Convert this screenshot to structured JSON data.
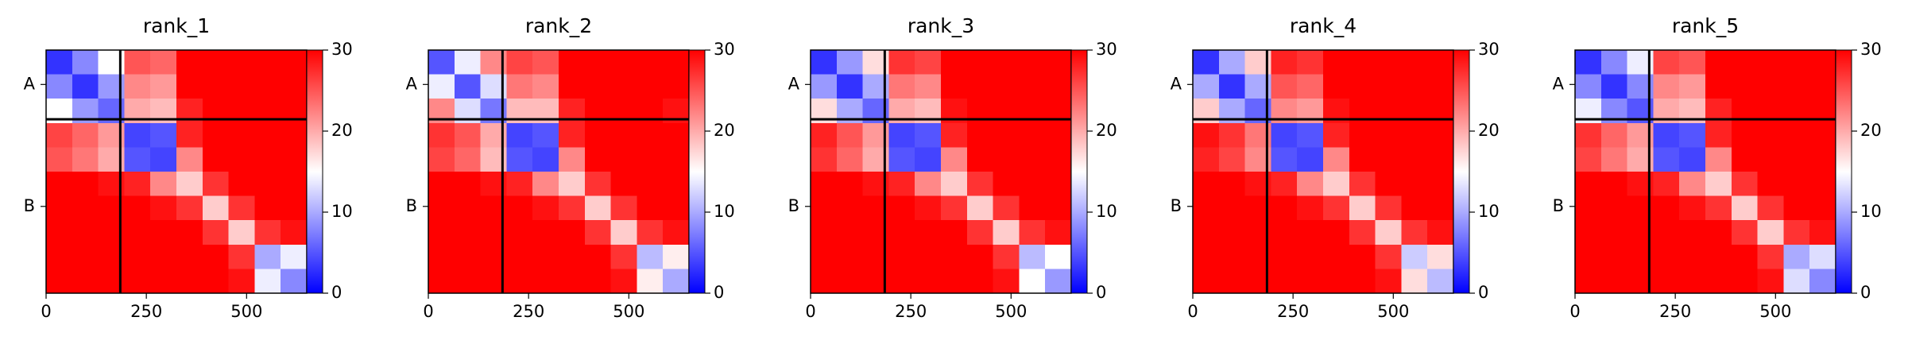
{
  "chart_data": [
    {
      "type": "heatmap",
      "title": "rank_1",
      "colormap": "bwr",
      "xbins": [
        0,
        65,
        130,
        195,
        260,
        325,
        390,
        455,
        520,
        585,
        650
      ],
      "ybins": [
        0,
        65,
        130,
        195,
        260,
        325,
        390,
        455,
        520,
        585,
        650
      ],
      "xlim": [
        0,
        650
      ],
      "ylim": [
        650,
        0
      ],
      "xticks": [
        0,
        250,
        500
      ],
      "yticks": [
        {
          "value": 92,
          "label": "A"
        },
        {
          "value": 418,
          "label": "B"
        }
      ],
      "chain_breaks": [
        185
      ],
      "clim": [
        0,
        30
      ],
      "cticks": [
        0,
        10,
        20,
        30
      ],
      "values": [
        [
          3,
          8,
          15,
          25,
          24,
          30,
          30,
          30,
          30,
          30
        ],
        [
          8,
          3,
          9,
          22,
          21,
          30,
          30,
          30,
          30,
          30
        ],
        [
          15,
          9,
          6,
          20,
          19,
          28,
          30,
          30,
          30,
          30
        ],
        [
          26,
          24,
          21,
          4,
          5,
          28,
          30,
          30,
          30,
          30
        ],
        [
          25,
          23,
          20,
          5,
          4,
          22,
          30,
          30,
          30,
          30
        ],
        [
          30,
          30,
          29,
          28,
          22,
          18,
          27,
          30,
          30,
          30
        ],
        [
          30,
          30,
          30,
          30,
          29,
          27,
          18,
          27,
          30,
          30
        ],
        [
          30,
          30,
          30,
          30,
          30,
          30,
          27,
          18,
          27,
          29
        ],
        [
          30,
          30,
          30,
          30,
          30,
          30,
          30,
          27,
          10,
          14
        ],
        [
          30,
          30,
          30,
          30,
          30,
          30,
          30,
          29,
          14,
          8
        ]
      ]
    },
    {
      "type": "heatmap",
      "title": "rank_2",
      "colormap": "bwr",
      "xbins": [
        0,
        65,
        130,
        195,
        260,
        325,
        390,
        455,
        520,
        585,
        650
      ],
      "ybins": [
        0,
        65,
        130,
        195,
        260,
        325,
        390,
        455,
        520,
        585,
        650
      ],
      "xlim": [
        0,
        650
      ],
      "ylim": [
        650,
        0
      ],
      "xticks": [
        0,
        250,
        500
      ],
      "yticks": [
        {
          "value": 92,
          "label": "A"
        },
        {
          "value": 418,
          "label": "B"
        }
      ],
      "chain_breaks": [
        185
      ],
      "clim": [
        0,
        30
      ],
      "cticks": [
        0,
        10,
        20,
        30
      ],
      "values": [
        [
          5,
          14,
          22,
          26,
          25,
          30,
          30,
          30,
          30,
          30
        ],
        [
          14,
          5,
          13,
          23,
          22,
          30,
          30,
          30,
          30,
          30
        ],
        [
          22,
          13,
          7,
          19,
          19,
          28,
          30,
          30,
          30,
          29
        ],
        [
          27,
          25,
          20,
          4,
          5,
          28,
          30,
          30,
          30,
          30
        ],
        [
          26,
          24,
          19,
          5,
          4,
          22,
          30,
          30,
          30,
          30
        ],
        [
          30,
          30,
          29,
          28,
          22,
          18,
          27,
          30,
          30,
          30
        ],
        [
          30,
          30,
          30,
          30,
          29,
          27,
          18,
          27,
          30,
          30
        ],
        [
          30,
          30,
          30,
          30,
          30,
          30,
          27,
          18,
          27,
          29
        ],
        [
          30,
          30,
          30,
          30,
          30,
          30,
          30,
          27,
          11,
          16
        ],
        [
          30,
          30,
          30,
          30,
          30,
          30,
          30,
          29,
          16,
          10
        ]
      ]
    },
    {
      "type": "heatmap",
      "title": "rank_3",
      "colormap": "bwr",
      "xbins": [
        0,
        65,
        130,
        195,
        260,
        325,
        390,
        455,
        520,
        585,
        650
      ],
      "ybins": [
        0,
        65,
        130,
        195,
        260,
        325,
        390,
        455,
        520,
        585,
        650
      ],
      "xlim": [
        0,
        650
      ],
      "ylim": [
        650,
        0
      ],
      "xticks": [
        0,
        250,
        500
      ],
      "yticks": [
        {
          "value": 92,
          "label": "A"
        },
        {
          "value": 418,
          "label": "B"
        }
      ],
      "chain_breaks": [
        185
      ],
      "clim": [
        0,
        30
      ],
      "cticks": [
        0,
        10,
        20,
        30
      ],
      "values": [
        [
          3,
          9,
          17,
          27,
          26,
          30,
          30,
          30,
          30,
          30
        ],
        [
          9,
          3,
          10,
          23,
          22,
          30,
          30,
          30,
          30,
          30
        ],
        [
          17,
          10,
          6,
          20,
          19,
          29,
          30,
          30,
          30,
          30
        ],
        [
          28,
          25,
          21,
          4,
          5,
          28,
          30,
          30,
          30,
          30
        ],
        [
          27,
          24,
          20,
          5,
          4,
          22,
          30,
          30,
          30,
          30
        ],
        [
          30,
          30,
          29,
          28,
          22,
          18,
          27,
          30,
          30,
          30
        ],
        [
          30,
          30,
          30,
          30,
          29,
          27,
          18,
          27,
          30,
          30
        ],
        [
          30,
          30,
          30,
          30,
          30,
          30,
          27,
          18,
          27,
          29
        ],
        [
          30,
          30,
          30,
          30,
          30,
          30,
          30,
          27,
          11,
          15
        ],
        [
          30,
          30,
          30,
          30,
          30,
          30,
          30,
          29,
          15,
          9
        ]
      ]
    },
    {
      "type": "heatmap",
      "title": "rank_4",
      "colormap": "bwr",
      "xbins": [
        0,
        65,
        130,
        195,
        260,
        325,
        390,
        455,
        520,
        585,
        650
      ],
      "ybins": [
        0,
        65,
        130,
        195,
        260,
        325,
        390,
        455,
        520,
        585,
        650
      ],
      "xlim": [
        0,
        650
      ],
      "ylim": [
        650,
        0
      ],
      "xticks": [
        0,
        250,
        500
      ],
      "yticks": [
        {
          "value": 92,
          "label": "A"
        },
        {
          "value": 418,
          "label": "B"
        }
      ],
      "chain_breaks": [
        185
      ],
      "clim": [
        0,
        30
      ],
      "cticks": [
        0,
        10,
        20,
        30
      ],
      "values": [
        [
          3,
          10,
          18,
          28,
          27,
          30,
          30,
          30,
          30,
          30
        ],
        [
          10,
          3,
          10,
          25,
          24,
          30,
          30,
          30,
          30,
          30
        ],
        [
          18,
          10,
          6,
          22,
          21,
          29,
          30,
          30,
          30,
          30
        ],
        [
          29,
          27,
          23,
          4,
          5,
          28,
          30,
          30,
          30,
          30
        ],
        [
          28,
          26,
          22,
          5,
          4,
          22,
          30,
          30,
          30,
          30
        ],
        [
          30,
          30,
          29,
          28,
          22,
          18,
          27,
          30,
          30,
          30
        ],
        [
          30,
          30,
          30,
          30,
          29,
          27,
          18,
          27,
          30,
          30
        ],
        [
          30,
          30,
          30,
          30,
          30,
          30,
          27,
          18,
          27,
          29
        ],
        [
          30,
          30,
          30,
          30,
          30,
          30,
          30,
          27,
          12,
          17
        ],
        [
          30,
          30,
          30,
          30,
          30,
          30,
          30,
          29,
          17,
          11
        ]
      ]
    },
    {
      "type": "heatmap",
      "title": "rank_5",
      "colormap": "bwr",
      "xbins": [
        0,
        65,
        130,
        195,
        260,
        325,
        390,
        455,
        520,
        585,
        650
      ],
      "ybins": [
        0,
        65,
        130,
        195,
        260,
        325,
        390,
        455,
        520,
        585,
        650
      ],
      "xlim": [
        0,
        650
      ],
      "ylim": [
        650,
        0
      ],
      "xticks": [
        0,
        250,
        500
      ],
      "yticks": [
        {
          "value": 92,
          "label": "A"
        },
        {
          "value": 418,
          "label": "B"
        }
      ],
      "chain_breaks": [
        185
      ],
      "clim": [
        0,
        30
      ],
      "cticks": [
        0,
        10,
        20,
        30
      ],
      "values": [
        [
          3,
          8,
          14,
          26,
          25,
          30,
          30,
          30,
          30,
          30
        ],
        [
          8,
          3,
          8,
          22,
          21,
          30,
          30,
          30,
          30,
          30
        ],
        [
          14,
          8,
          5,
          20,
          19,
          28,
          30,
          30,
          30,
          30
        ],
        [
          27,
          24,
          21,
          4,
          5,
          28,
          30,
          30,
          30,
          30
        ],
        [
          26,
          23,
          20,
          5,
          4,
          22,
          30,
          30,
          30,
          30
        ],
        [
          30,
          30,
          29,
          28,
          22,
          18,
          27,
          30,
          30,
          30
        ],
        [
          30,
          30,
          30,
          30,
          29,
          27,
          18,
          27,
          30,
          30
        ],
        [
          30,
          30,
          30,
          30,
          30,
          30,
          27,
          18,
          27,
          29
        ],
        [
          30,
          30,
          30,
          30,
          30,
          30,
          30,
          27,
          10,
          13
        ],
        [
          30,
          30,
          30,
          30,
          30,
          30,
          30,
          29,
          13,
          8
        ]
      ]
    }
  ]
}
